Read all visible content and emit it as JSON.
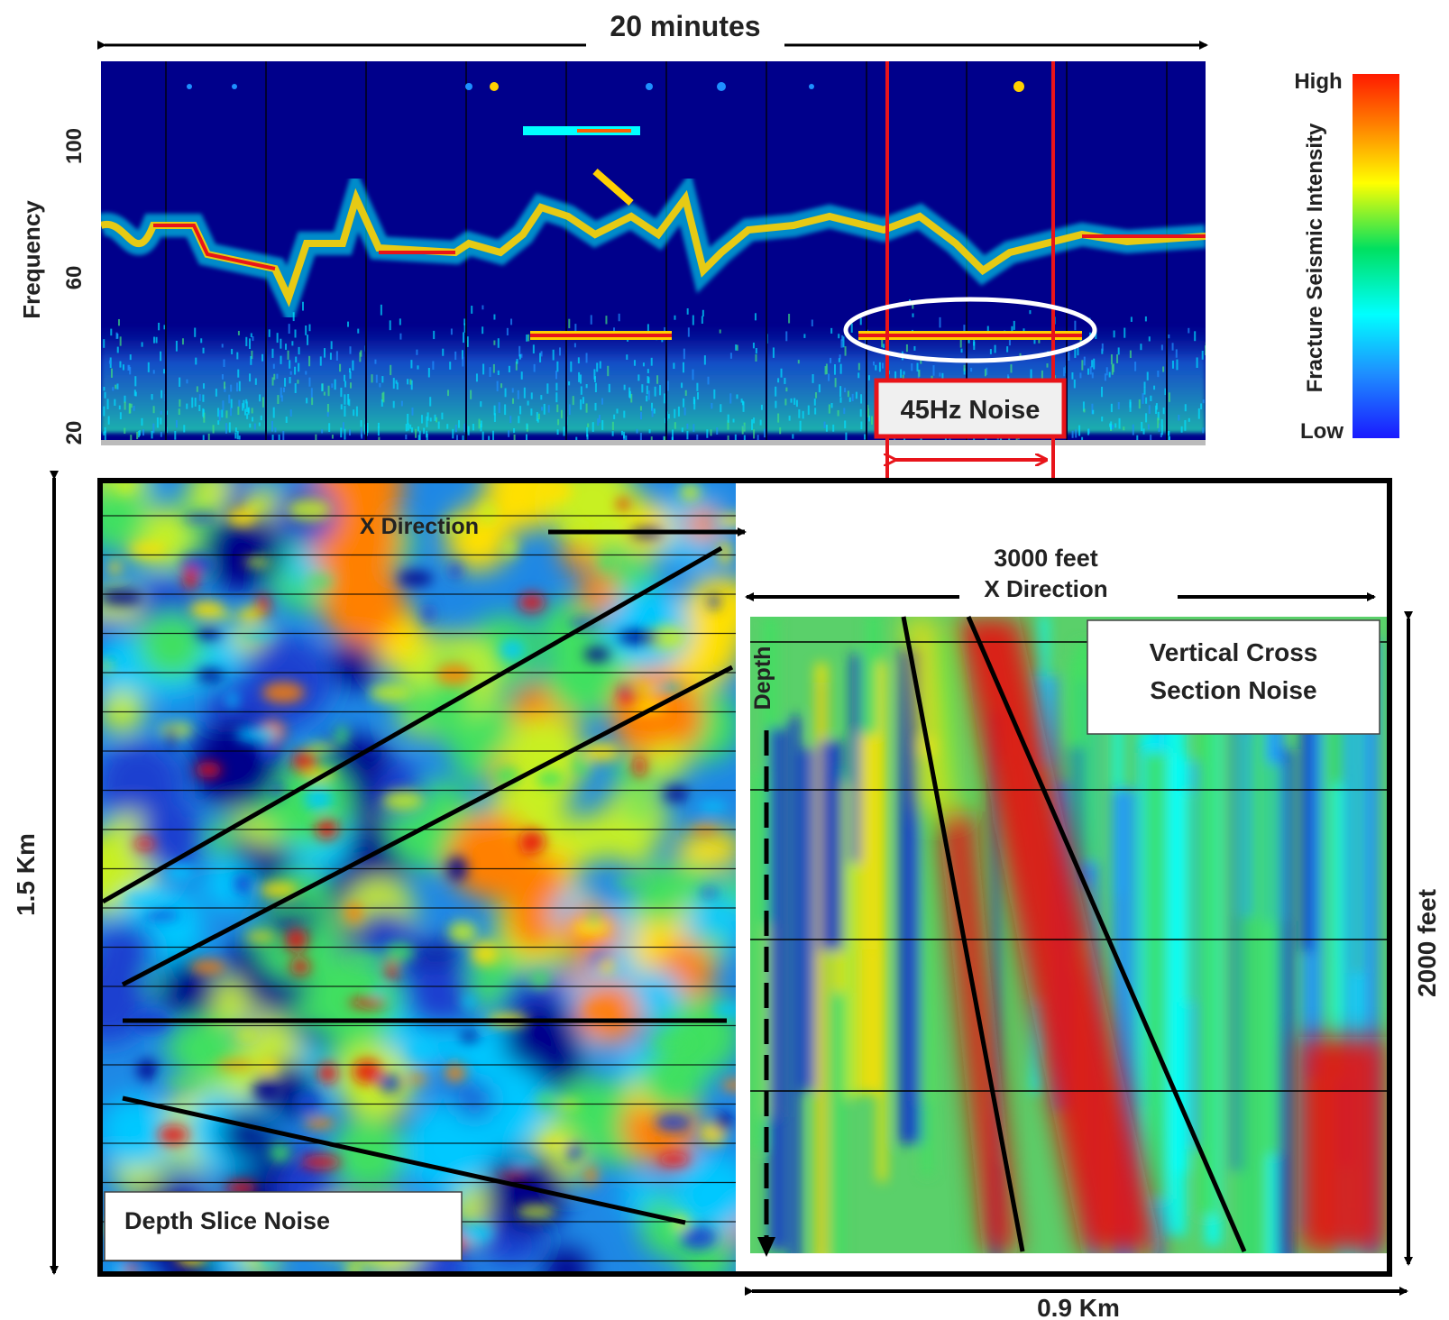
{
  "top_time_label": "20 minutes",
  "spectrogram": {
    "y_axis_label": "Frequency",
    "y_ticks": [
      "100",
      "60",
      "20"
    ],
    "annotation": "45Hz Noise"
  },
  "colorbar": {
    "title": "Fracture Seismic Intensity",
    "high_label": "High",
    "low_label": "Low",
    "colors": [
      "#1a1aff",
      "#1e90ff",
      "#00ffff",
      "#00e060",
      "#ffff00",
      "#ff8000",
      "#ff1a00"
    ]
  },
  "depth_slice": {
    "caption": "Depth Slice Noise",
    "direction_label": "X Direction",
    "height_label": "1.5 Km"
  },
  "cross_section": {
    "caption_line1": "Vertical Cross",
    "caption_line2": "Section Noise",
    "width_label": "3000 feet",
    "direction_label": "X Direction",
    "depth_label": "Depth",
    "height_label": "2000 feet",
    "bottom_label": "0.9 Km"
  },
  "accent": {
    "red": "#e8141a",
    "background_blue": "#00008b"
  }
}
